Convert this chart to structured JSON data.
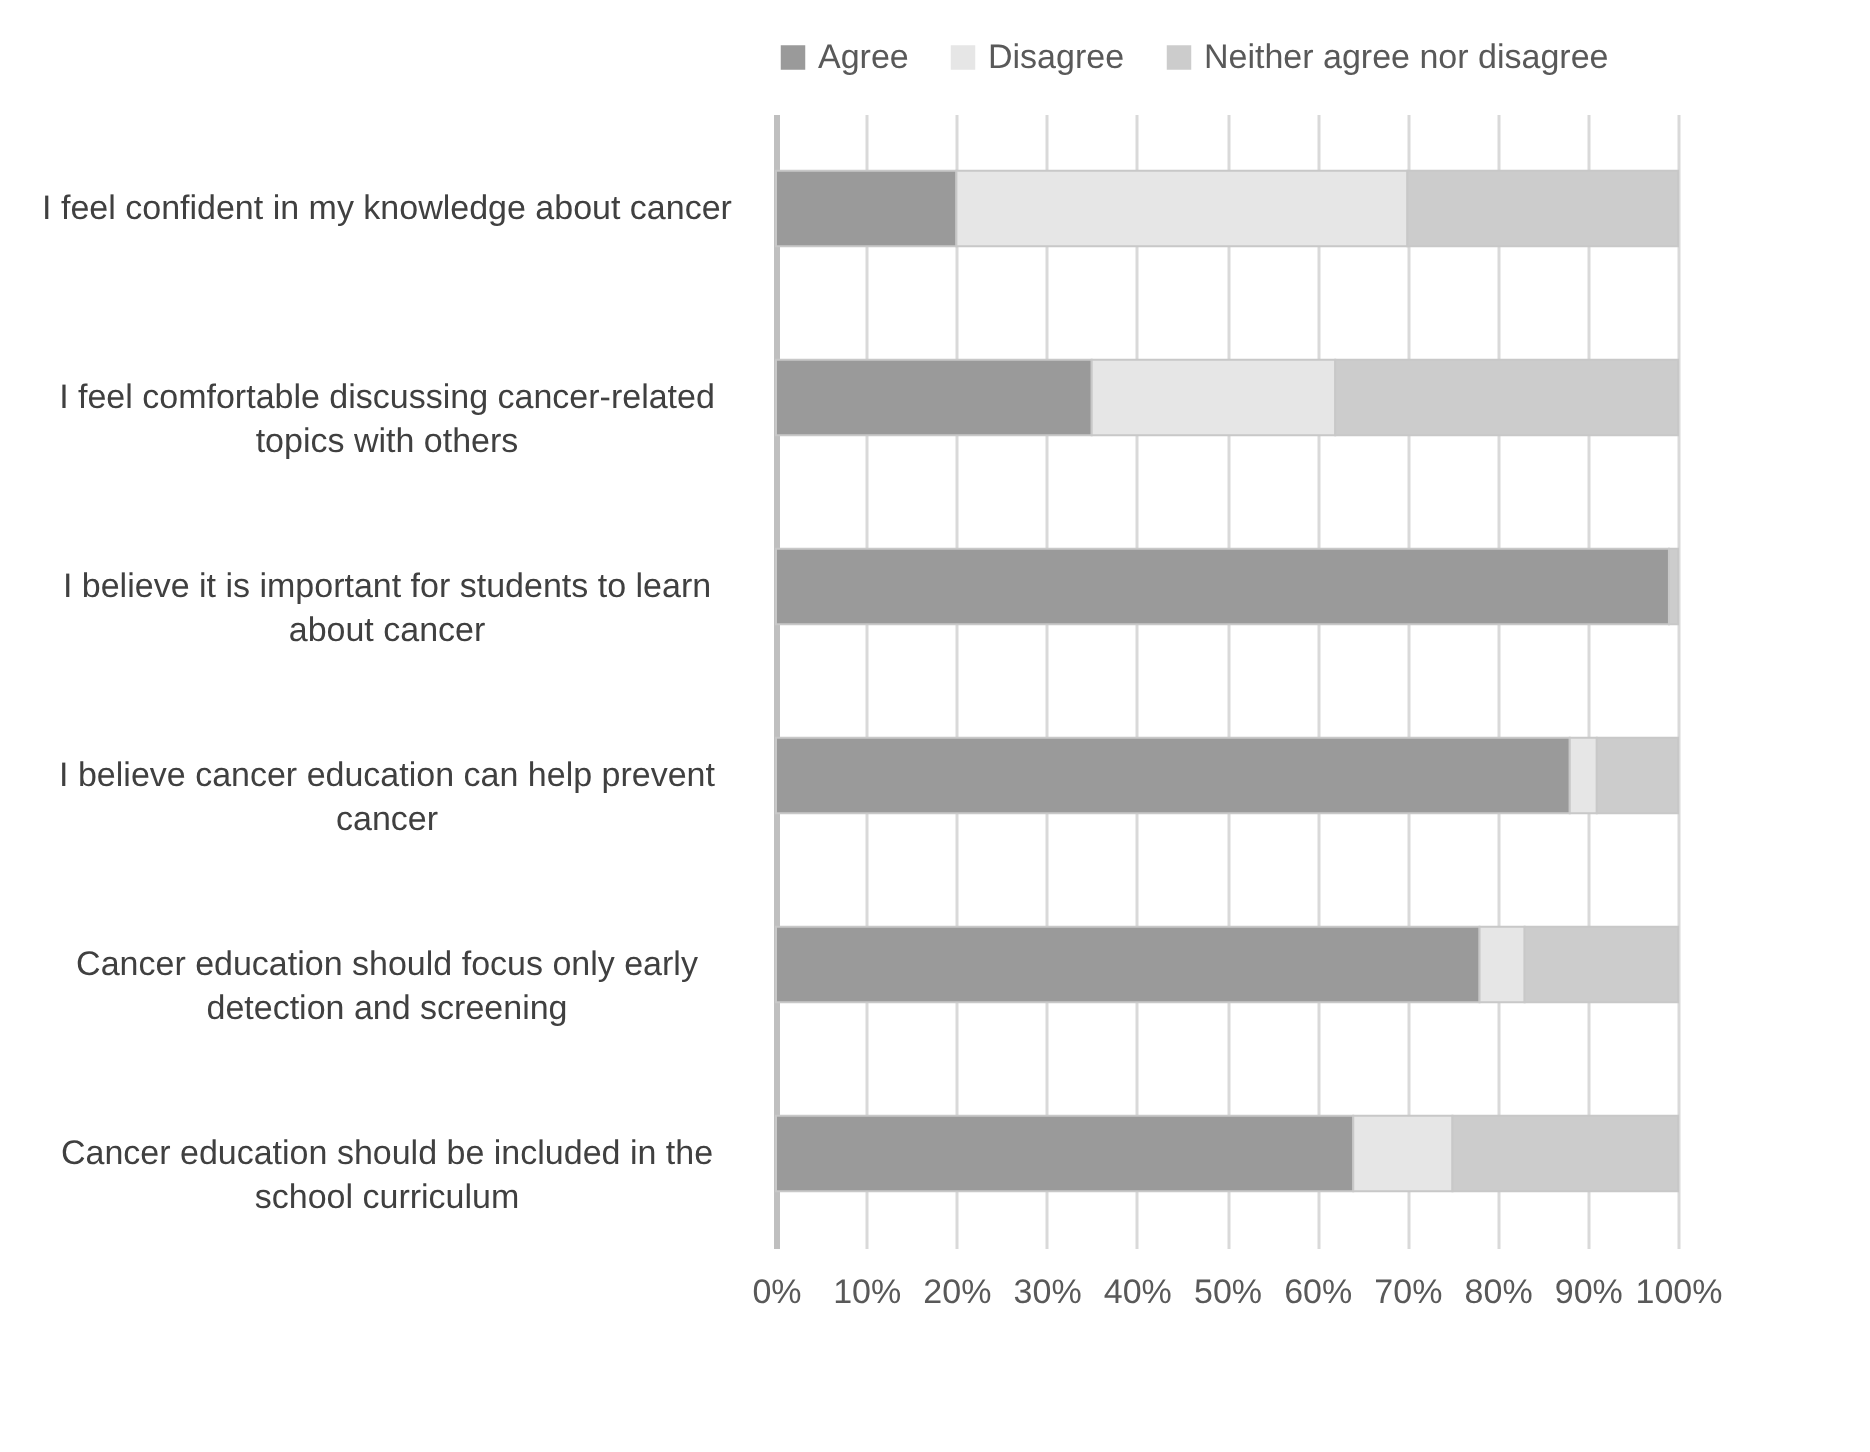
{
  "chart_data": {
    "type": "bar",
    "orientation": "horizontal",
    "stacked": true,
    "categories": [
      "I feel confident in my knowledge about cancer",
      "I feel comfortable discussing cancer-related topics with others",
      "I believe it is important for students to learn about cancer",
      "I believe cancer education can help prevent cancer",
      "Cancer education should focus only early detection and screening",
      "Cancer education should be included in the school curriculum"
    ],
    "series": [
      {
        "name": "Agree",
        "color": "#9a9a9a",
        "values": [
          20,
          35,
          99,
          88,
          78,
          64
        ]
      },
      {
        "name": "Disagree",
        "color": "#e6e6e6",
        "values": [
          50,
          27,
          0,
          3,
          5,
          11
        ]
      },
      {
        "name": "Neither agree nor disagree",
        "color": "#cccccc",
        "values": [
          30,
          38,
          1,
          9,
          17,
          25
        ]
      }
    ],
    "xlim": [
      0,
      100
    ],
    "xticks": [
      {
        "value": 0,
        "label": "0%"
      },
      {
        "value": 10,
        "label": "10%"
      },
      {
        "value": 20,
        "label": "20%"
      },
      {
        "value": 30,
        "label": "30%"
      },
      {
        "value": 40,
        "label": "40%"
      },
      {
        "value": 50,
        "label": "50%"
      },
      {
        "value": 60,
        "label": "60%"
      },
      {
        "value": 70,
        "label": "70%"
      },
      {
        "value": 80,
        "label": "80%"
      },
      {
        "value": 90,
        "label": "90%"
      },
      {
        "value": 100,
        "label": "100%"
      }
    ],
    "grid": "x",
    "legend": "top"
  }
}
